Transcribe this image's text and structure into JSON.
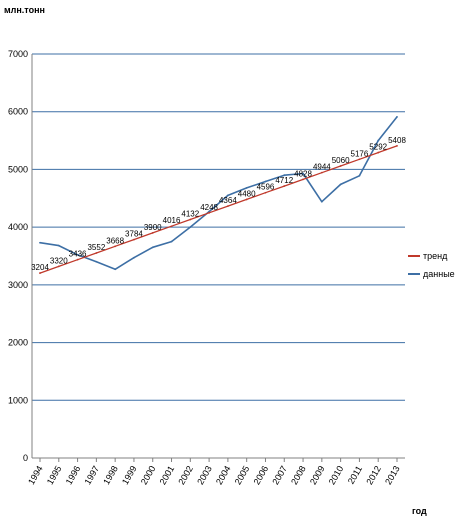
{
  "chart_data": {
    "type": "line",
    "ylabel": "млн.тонн",
    "xlabel": "год",
    "ylim": [
      0,
      7000
    ],
    "yticks": [
      0,
      1000,
      2000,
      3000,
      4000,
      5000,
      6000,
      7000
    ],
    "grid": "horizontal",
    "legend_position": "right",
    "categories": [
      "1994",
      "1995",
      "1996",
      "1997",
      "1998",
      "1999",
      "2000",
      "2001",
      "2002",
      "2003",
      "2004",
      "2005",
      "2006",
      "2007",
      "2008",
      "2009",
      "2010",
      "2011",
      "2012",
      "2013"
    ],
    "series": [
      {
        "name": "тренд",
        "color": "#c0392b",
        "x": [
          "1994",
          "1995",
          "1996",
          "1997",
          "1998",
          "1999",
          "2000",
          "2001",
          "2002",
          "2003",
          "2004",
          "2005",
          "2006",
          "2007",
          "2008",
          "2009",
          "2010",
          "2011",
          "2012",
          "2013"
        ],
        "values": [
          3204,
          3320,
          3436,
          3552,
          3668,
          3784,
          3900,
          4016,
          4132,
          4248,
          4364,
          4480,
          4596,
          4712,
          4828,
          4944,
          5060,
          5176,
          5292,
          5408
        ],
        "labels": [
          "3204",
          "3320",
          "3436",
          "3552",
          "3668",
          "3784",
          "3900",
          "4016",
          "4132",
          "4248",
          "4364",
          "4480",
          "4596",
          "4712",
          "4828",
          "4944",
          "5060",
          "5176",
          "5292",
          "5408"
        ],
        "label_indices": [
          0,
          1,
          2,
          3,
          4,
          5,
          6,
          7,
          8,
          9,
          10,
          11,
          12,
          13,
          14,
          15,
          16,
          17,
          18,
          19
        ]
      },
      {
        "name": "данные",
        "color": "#3d6fa5",
        "x": [
          "1994",
          "1995",
          "1996",
          "1997",
          "1998",
          "1999",
          "2000",
          "2001",
          "2002",
          "2003",
          "2004",
          "2005",
          "2006",
          "2007",
          "2008",
          "2009",
          "2010",
          "2011",
          "2012",
          "2013"
        ],
        "values": [
          3730,
          3680,
          3520,
          3400,
          3270,
          3470,
          3650,
          3750,
          4000,
          4270,
          4550,
          4680,
          4790,
          4900,
          4930,
          4440,
          4740,
          4890,
          5500,
          5910
        ]
      }
    ]
  }
}
